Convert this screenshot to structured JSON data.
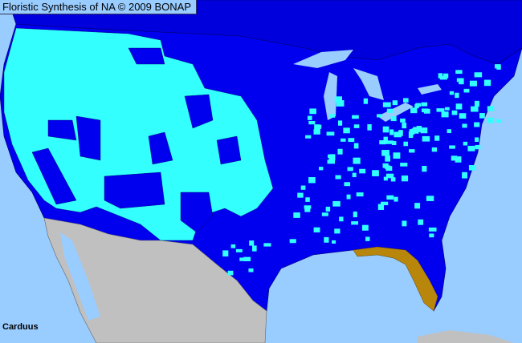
{
  "header": {
    "title": "Floristic Synthesis of NA © 2009 BONAP"
  },
  "map": {
    "taxon_label": "Carduus",
    "colors": {
      "ocean": "#99ccff",
      "land_base": "#0000ee",
      "canada": "#0000dd",
      "present_in_county": "#33ffff",
      "noxious_or_rare_state": "#b8860b",
      "outside_range": "#c0c0c0",
      "county_lines": "#000066"
    }
  }
}
